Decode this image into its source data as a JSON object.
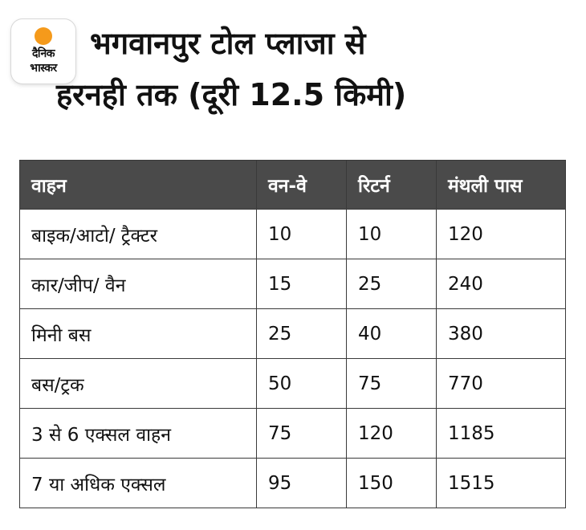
{
  "logo": {
    "line1": "दैनिक",
    "line2": "भास्कर",
    "sun_color": "#f59a1b"
  },
  "headline": {
    "line1": "भगवानपुर टोल प्लाजा से",
    "line2": "हरनही तक (दूरी 12.5 किमी)"
  },
  "table": {
    "header_color": "#4a4a4a",
    "columns": [
      "वाहन",
      "वन-वे",
      "रिटर्न",
      "मंथली पास"
    ],
    "rows": [
      [
        "बाइक/आटो/ ट्रैक्टर",
        "10",
        "10",
        "120"
      ],
      [
        "कार/जीप/ वैन",
        "15",
        "25",
        "240"
      ],
      [
        "मिनी बस",
        "25",
        "40",
        "380"
      ],
      [
        "बस/ट्रक",
        "50",
        "75",
        "770"
      ],
      [
        "3 से 6 एक्सल वाहन",
        "75",
        "120",
        "1185"
      ],
      [
        "7 या अधिक एक्सल",
        "95",
        "150",
        "1515"
      ]
    ]
  }
}
